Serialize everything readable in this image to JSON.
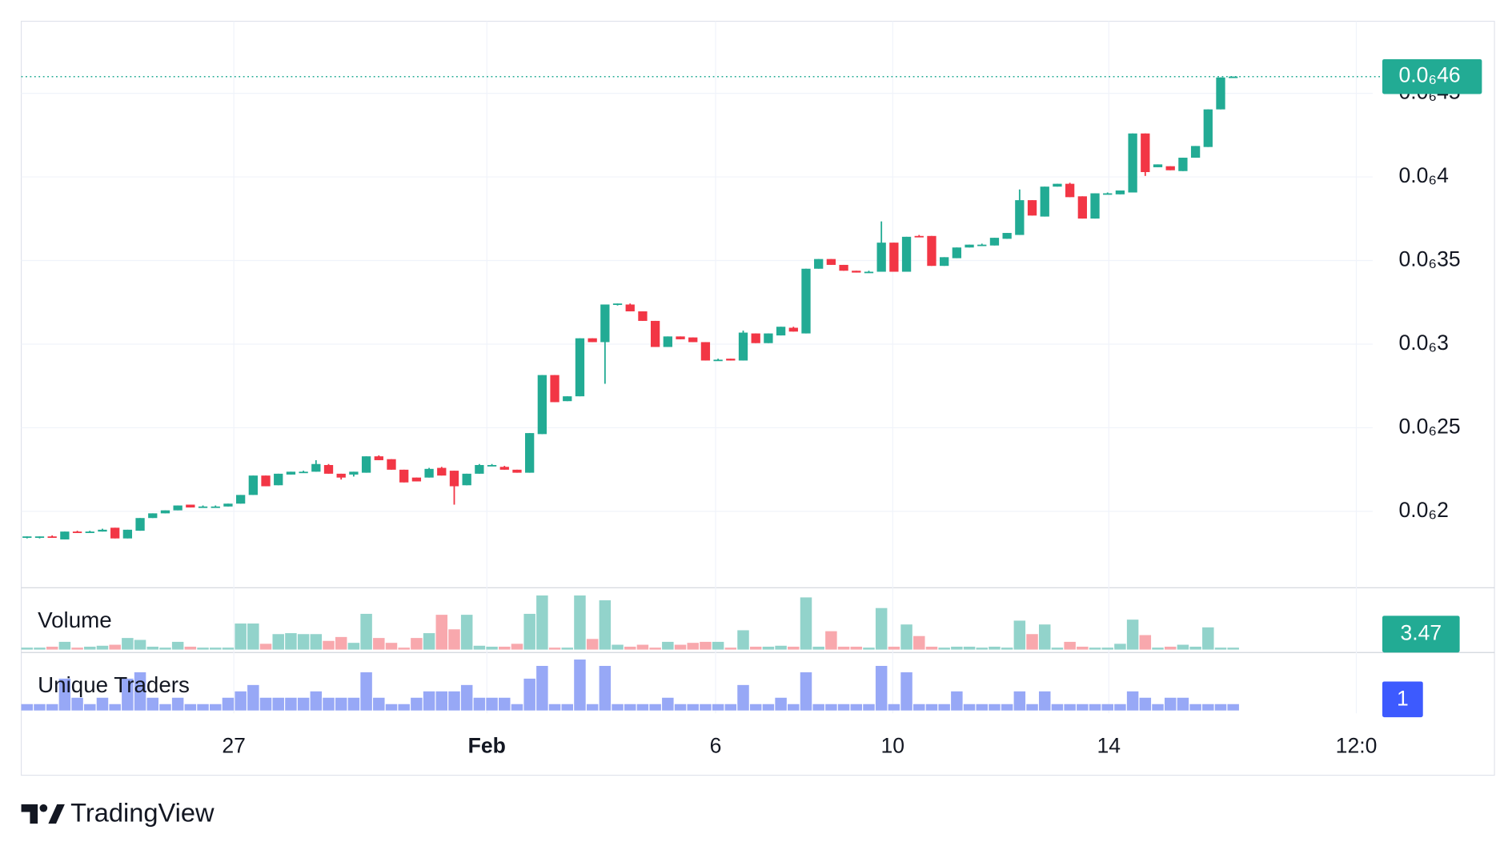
{
  "chart_data": {
    "type": "candlestick",
    "up_color": "#22ab94",
    "down_color": "#f23645",
    "up_volume_color": "#92d3cb",
    "down_volume_color": "#f8a8ad",
    "grid": true,
    "xlim": [
      -0.46,
      107.1
    ],
    "xticks": [
      {
        "value": 16.46,
        "label": "27"
      },
      {
        "value": 36.6,
        "label": "Feb"
      },
      {
        "value": 54.8,
        "label": "6"
      },
      {
        "value": 68.9,
        "label": "10"
      },
      {
        "value": 86.1,
        "label": "14"
      },
      {
        "value": 105.8,
        "label": "12:0"
      }
    ],
    "ylim": [
      1.549e-07,
      4.931e-07
    ],
    "yticks": [
      {
        "value": 2e-07,
        "label": "0.0₆2"
      },
      {
        "value": 2.5e-07,
        "label": "0.0₆25"
      },
      {
        "value": 3e-07,
        "label": "0.0₆3"
      },
      {
        "value": 3.5e-07,
        "label": "0.0₆35"
      },
      {
        "value": 4e-07,
        "label": "0.0₆4"
      },
      {
        "value": 4.5e-07,
        "label": "0.0₆45"
      }
    ],
    "last_label": "0.0₆46",
    "open": [
      1.844e-07,
      1.844e-07,
      1.85e-07,
      1.832e-07,
      1.879e-07,
      1.873e-07,
      1.879e-07,
      1.902e-07,
      1.838e-07,
      1.884e-07,
      1.96e-07,
      1.988e-07,
      2.006e-07,
      2.04e-07,
      2.023e-07,
      2.029e-07,
      2.029e-07,
      2.046e-07,
      2.098e-07,
      2.214e-07,
      2.156e-07,
      2.22e-07,
      2.237e-07,
      2.237e-07,
      2.277e-07,
      2.225e-07,
      2.22e-07,
      2.231e-07,
      2.329e-07,
      2.312e-07,
      2.249e-07,
      2.202e-07,
      2.202e-07,
      2.26e-07,
      2.243e-07,
      2.156e-07,
      2.225e-07,
      2.277e-07,
      2.266e-07,
      2.249e-07,
      2.231e-07,
      2.462e-07,
      2.815e-07,
      2.659e-07,
      2.688e-07,
      3.035e-07,
      3.012e-07,
      3.237e-07,
      3.237e-07,
      3.196e-07,
      3.139e-07,
      2.983e-07,
      3.046e-07,
      3.04e-07,
      3.012e-07,
      2.902e-07,
      2.913e-07,
      2.902e-07,
      3.064e-07,
      3.006e-07,
      3.052e-07,
      3.098e-07,
      3.064e-07,
      3.451e-07,
      3.509e-07,
      3.474e-07,
      3.439e-07,
      3.428e-07,
      3.433e-07,
      3.607e-07,
      3.433e-07,
      3.647e-07,
      3.647e-07,
      3.468e-07,
      3.514e-07,
      3.578e-07,
      3.595e-07,
      3.59e-07,
      3.63e-07,
      3.653e-07,
      3.861e-07,
      3.763e-07,
      3.942e-07,
      3.959e-07,
      3.884e-07,
      3.751e-07,
      3.902e-07,
      3.896e-07,
      3.907e-07,
      4.26e-07,
      4.058e-07,
      4.064e-07,
      4.035e-07,
      4.115e-07,
      4.179e-07,
      4.404e-07,
      4.595e-07
    ],
    "high": [
      1.85e-07,
      1.85e-07,
      1.856e-07,
      1.879e-07,
      1.884e-07,
      1.884e-07,
      1.896e-07,
      1.902e-07,
      1.89e-07,
      1.96e-07,
      1.988e-07,
      2.006e-07,
      2.035e-07,
      2.04e-07,
      2.035e-07,
      2.035e-07,
      2.046e-07,
      2.098e-07,
      2.214e-07,
      2.214e-07,
      2.225e-07,
      2.237e-07,
      2.243e-07,
      2.306e-07,
      2.283e-07,
      2.225e-07,
      2.237e-07,
      2.329e-07,
      2.335e-07,
      2.312e-07,
      2.249e-07,
      2.202e-07,
      2.26e-07,
      2.266e-07,
      2.243e-07,
      2.225e-07,
      2.283e-07,
      2.283e-07,
      2.272e-07,
      2.249e-07,
      2.468e-07,
      2.815e-07,
      2.815e-07,
      2.688e-07,
      3.035e-07,
      3.035e-07,
      3.237e-07,
      3.243e-07,
      3.243e-07,
      3.196e-07,
      3.139e-07,
      3.046e-07,
      3.046e-07,
      3.04e-07,
      3.012e-07,
      2.913e-07,
      2.913e-07,
      3.081e-07,
      3.064e-07,
      3.064e-07,
      3.104e-07,
      3.104e-07,
      3.451e-07,
      3.509e-07,
      3.509e-07,
      3.474e-07,
      3.439e-07,
      3.439e-07,
      3.734e-07,
      3.607e-07,
      3.642e-07,
      3.653e-07,
      3.647e-07,
      3.52e-07,
      3.578e-07,
      3.595e-07,
      3.601e-07,
      3.636e-07,
      3.665e-07,
      3.925e-07,
      3.861e-07,
      3.942e-07,
      3.959e-07,
      3.965e-07,
      3.884e-07,
      3.902e-07,
      3.907e-07,
      3.919e-07,
      4.26e-07,
      4.26e-07,
      4.075e-07,
      4.064e-07,
      4.115e-07,
      4.185e-07,
      4.404e-07,
      4.595e-07,
      4.6e-07
    ],
    "low": [
      1.838e-07,
      1.838e-07,
      1.844e-07,
      1.832e-07,
      1.873e-07,
      1.873e-07,
      1.879e-07,
      1.838e-07,
      1.838e-07,
      1.884e-07,
      1.96e-07,
      1.988e-07,
      2.006e-07,
      2.023e-07,
      2.023e-07,
      2.023e-07,
      2.029e-07,
      2.046e-07,
      2.098e-07,
      2.15e-07,
      2.156e-07,
      2.22e-07,
      2.231e-07,
      2.237e-07,
      2.225e-07,
      2.19e-07,
      2.208e-07,
      2.231e-07,
      2.306e-07,
      2.249e-07,
      2.173e-07,
      2.179e-07,
      2.202e-07,
      2.214e-07,
      2.04e-07,
      2.156e-07,
      2.225e-07,
      2.272e-07,
      2.249e-07,
      2.231e-07,
      2.231e-07,
      2.462e-07,
      2.653e-07,
      2.659e-07,
      2.688e-07,
      3.012e-07,
      2.763e-07,
      3.231e-07,
      3.196e-07,
      3.139e-07,
      2.983e-07,
      2.983e-07,
      3.029e-07,
      3.012e-07,
      2.902e-07,
      2.902e-07,
      2.902e-07,
      2.902e-07,
      3.006e-07,
      3.006e-07,
      3.052e-07,
      3.075e-07,
      3.064e-07,
      3.451e-07,
      3.474e-07,
      3.439e-07,
      3.428e-07,
      3.428e-07,
      3.433e-07,
      3.433e-07,
      3.433e-07,
      3.642e-07,
      3.468e-07,
      3.468e-07,
      3.514e-07,
      3.578e-07,
      3.59e-07,
      3.59e-07,
      3.63e-07,
      3.653e-07,
      3.769e-07,
      3.763e-07,
      3.942e-07,
      3.879e-07,
      3.751e-07,
      3.751e-07,
      3.896e-07,
      3.896e-07,
      3.907e-07,
      4.006e-07,
      4.058e-07,
      4.04e-07,
      4.035e-07,
      4.115e-07,
      4.179e-07,
      4.404e-07,
      4.595e-07
    ],
    "close": [
      1.85e-07,
      1.85e-07,
      1.844e-07,
      1.879e-07,
      1.873e-07,
      1.879e-07,
      1.89e-07,
      1.838e-07,
      1.89e-07,
      1.96e-07,
      1.988e-07,
      2.006e-07,
      2.035e-07,
      2.023e-07,
      2.029e-07,
      2.029e-07,
      2.046e-07,
      2.098e-07,
      2.214e-07,
      2.15e-07,
      2.225e-07,
      2.237e-07,
      2.237e-07,
      2.283e-07,
      2.225e-07,
      2.202e-07,
      2.237e-07,
      2.329e-07,
      2.306e-07,
      2.249e-07,
      2.173e-07,
      2.179e-07,
      2.254e-07,
      2.214e-07,
      2.15e-07,
      2.225e-07,
      2.277e-07,
      2.277e-07,
      2.249e-07,
      2.231e-07,
      2.468e-07,
      2.815e-07,
      2.653e-07,
      2.688e-07,
      3.035e-07,
      3.012e-07,
      3.237e-07,
      3.243e-07,
      3.196e-07,
      3.139e-07,
      2.983e-07,
      3.046e-07,
      3.029e-07,
      3.012e-07,
      2.902e-07,
      2.907e-07,
      2.902e-07,
      3.069e-07,
      3.006e-07,
      3.064e-07,
      3.104e-07,
      3.075e-07,
      3.451e-07,
      3.509e-07,
      3.474e-07,
      3.439e-07,
      3.428e-07,
      3.433e-07,
      3.607e-07,
      3.433e-07,
      3.642e-07,
      3.642e-07,
      3.468e-07,
      3.52e-07,
      3.578e-07,
      3.595e-07,
      3.595e-07,
      3.636e-07,
      3.665e-07,
      3.861e-07,
      3.769e-07,
      3.942e-07,
      3.959e-07,
      3.879e-07,
      3.751e-07,
      3.902e-07,
      3.902e-07,
      3.919e-07,
      4.26e-07,
      4.029e-07,
      4.075e-07,
      4.04e-07,
      4.115e-07,
      4.185e-07,
      4.404e-07,
      4.595e-07,
      4.6e-07
    ],
    "volume": {
      "name": "Volume",
      "ylim": [
        0,
        100
      ],
      "values": [
        3.5,
        3.5,
        5.2,
        13.9,
        3.5,
        5.2,
        6.9,
        8.7,
        20.8,
        17.4,
        5.2,
        3.5,
        13.9,
        5.2,
        3.5,
        3.5,
        3.5,
        46.8,
        46.8,
        10.4,
        27.8,
        29.5,
        27.8,
        27.8,
        15.6,
        22.6,
        12.1,
        64.2,
        20.8,
        12.1,
        3.5,
        20.8,
        29.5,
        62.5,
        36.4,
        62.5,
        6.9,
        5.2,
        5.2,
        10.4,
        64.2,
        97.2,
        3.5,
        3.5,
        97.2,
        19.1,
        88.5,
        8.7,
        5.2,
        8.7,
        3.5,
        13.9,
        8.7,
        12.1,
        13.9,
        13.9,
        3.5,
        34.7,
        5.2,
        5.2,
        6.9,
        5.2,
        93.7,
        5.2,
        33,
        5.2,
        5.2,
        3.5,
        74.6,
        5.2,
        45.1,
        24.3,
        5.2,
        3.5,
        5.2,
        5.2,
        3.5,
        5.2,
        3.5,
        52,
        27.8,
        45.1,
        3.5,
        13.9,
        5.2,
        3.5,
        3.5,
        10.4,
        53.8,
        26,
        3.5,
        5.2,
        8.7,
        5.2,
        39.9,
        3.5,
        3.47
      ]
    },
    "traders": {
      "name": "Unique Traders",
      "color": "#97a8f6",
      "badge_color": "#3d5afe",
      "ylim": [
        0,
        8.5
      ],
      "values": [
        1,
        1,
        1,
        5,
        2,
        1,
        2,
        1,
        5,
        6,
        2,
        1,
        2,
        1,
        1,
        1,
        2,
        3,
        4,
        2,
        2,
        2,
        2,
        3,
        2,
        2,
        2,
        6,
        2,
        1,
        1,
        2,
        3,
        3,
        3,
        4,
        2,
        2,
        2,
        1,
        5,
        7,
        1,
        1,
        8,
        1,
        7,
        1,
        1,
        1,
        1,
        2,
        1,
        1,
        1,
        1,
        1,
        4,
        1,
        1,
        2,
        1,
        6,
        1,
        1,
        1,
        1,
        1,
        7,
        1,
        6,
        1,
        1,
        1,
        3,
        1,
        1,
        1,
        1,
        3,
        1,
        3,
        1,
        1,
        1,
        1,
        1,
        1,
        3,
        2,
        1,
        2,
        2,
        1,
        1,
        1,
        1
      ]
    }
  },
  "brand": "TradingView"
}
